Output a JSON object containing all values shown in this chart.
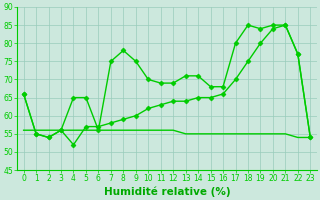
{
  "x": [
    0,
    1,
    2,
    3,
    4,
    5,
    6,
    7,
    8,
    9,
    10,
    11,
    12,
    13,
    14,
    15,
    16,
    17,
    18,
    19,
    20,
    21,
    22,
    23
  ],
  "line1": [
    66,
    55,
    54,
    56,
    65,
    65,
    56,
    75,
    78,
    75,
    70,
    69,
    69,
    71,
    71,
    68,
    68,
    80,
    85,
    84,
    85,
    85,
    77,
    54
  ],
  "line2": [
    66,
    55,
    54,
    56,
    52,
    57,
    57,
    58,
    59,
    60,
    62,
    63,
    64,
    64,
    65,
    65,
    66,
    70,
    75,
    80,
    84,
    85,
    77,
    54
  ],
  "line3": [
    56,
    56,
    56,
    56,
    56,
    56,
    56,
    56,
    56,
    56,
    56,
    56,
    56,
    55,
    55,
    55,
    55,
    55,
    55,
    55,
    55,
    55,
    54,
    54
  ],
  "line_color": "#00cc00",
  "bg_color": "#cce8dd",
  "grid_color": "#99ccbb",
  "xlabel": "Humidité relative (%)",
  "xlabel_color": "#00aa00",
  "ylim": [
    45,
    90
  ],
  "xlim": [
    -0.5,
    23.5
  ],
  "yticks": [
    45,
    50,
    55,
    60,
    65,
    70,
    75,
    80,
    85,
    90
  ],
  "xticks": [
    0,
    1,
    2,
    3,
    4,
    5,
    6,
    7,
    8,
    9,
    10,
    11,
    12,
    13,
    14,
    15,
    16,
    17,
    18,
    19,
    20,
    21,
    22,
    23
  ],
  "marker": "D",
  "markersize": 2.5,
  "linewidth": 1.0,
  "tick_fontsize": 5.5,
  "xlabel_fontsize": 7.5
}
